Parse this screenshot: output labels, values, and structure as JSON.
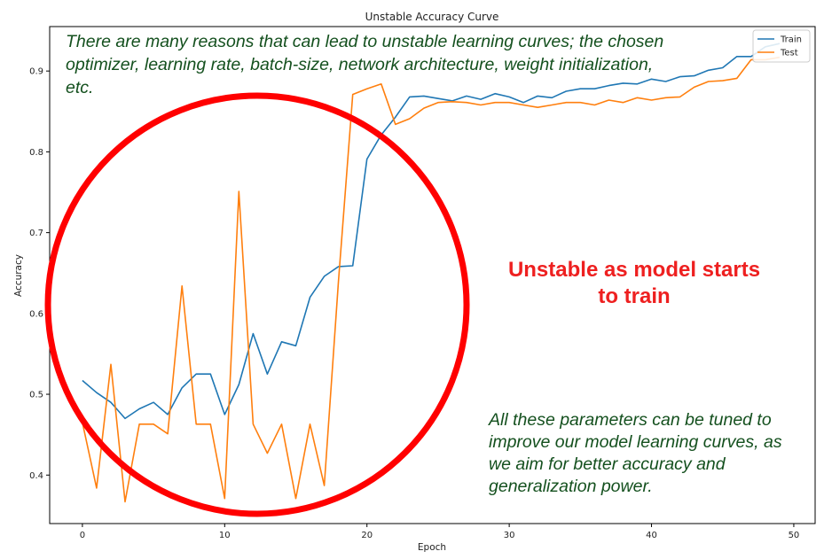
{
  "chart_data": {
    "type": "line",
    "title": "Unstable Accuracy Curve",
    "xlabel": "Epoch",
    "ylabel": "Accuracy",
    "xlim": [
      -2.3,
      51.5
    ],
    "ylim": [
      0.34,
      0.955
    ],
    "xticks": [
      0,
      10,
      20,
      30,
      40,
      50
    ],
    "yticks": [
      0.4,
      0.5,
      0.6,
      0.7,
      0.8,
      0.9
    ],
    "xtick_labels": [
      "0",
      "10",
      "20",
      "30",
      "40",
      "50"
    ],
    "ytick_labels": [
      "0.4",
      "0.5",
      "0.6",
      "0.7",
      "0.8",
      "0.9"
    ],
    "legend_position": "top-right",
    "grid": false,
    "x": [
      0,
      1,
      2,
      3,
      4,
      5,
      6,
      7,
      8,
      9,
      10,
      11,
      12,
      13,
      14,
      15,
      16,
      17,
      18,
      19,
      20,
      21,
      22,
      23,
      24,
      25,
      26,
      27,
      28,
      29,
      30,
      31,
      32,
      33,
      34,
      35,
      36,
      37,
      38,
      39,
      40,
      41,
      42,
      43,
      44,
      45,
      46,
      47,
      48,
      49
    ],
    "series": [
      {
        "name": "Train",
        "color": "#1f77b4",
        "values": [
          0.517,
          0.502,
          0.49,
          0.47,
          0.482,
          0.49,
          0.475,
          0.508,
          0.525,
          0.525,
          0.475,
          0.512,
          0.575,
          0.525,
          0.565,
          0.56,
          0.62,
          0.646,
          0.658,
          0.659,
          0.791,
          0.821,
          0.843,
          0.868,
          0.869,
          0.866,
          0.863,
          0.869,
          0.865,
          0.872,
          0.868,
          0.861,
          0.869,
          0.867,
          0.875,
          0.878,
          0.878,
          0.882,
          0.885,
          0.884,
          0.89,
          0.887,
          0.893,
          0.894,
          0.901,
          0.904,
          0.918,
          0.918,
          0.93,
          0.934
        ]
      },
      {
        "name": "Test",
        "color": "#ff7f0e",
        "values": [
          0.465,
          0.384,
          0.537,
          0.367,
          0.463,
          0.463,
          0.451,
          0.634,
          0.463,
          0.463,
          0.371,
          0.751,
          0.463,
          0.427,
          0.463,
          0.371,
          0.463,
          0.387,
          0.64,
          0.871,
          0.878,
          0.884,
          0.834,
          0.841,
          0.854,
          0.861,
          0.862,
          0.861,
          0.858,
          0.861,
          0.861,
          0.858,
          0.855,
          0.858,
          0.861,
          0.861,
          0.858,
          0.864,
          0.861,
          0.867,
          0.864,
          0.867,
          0.868,
          0.88,
          0.887,
          0.888,
          0.891,
          0.914,
          0.914,
          0.917
        ]
      }
    ]
  },
  "annotations": {
    "top_text": "There are many reasons that can lead to unstable learning curves; the chosen optimizer, learning rate, batch-size, network architecture, weight initialization, etc.",
    "red_text_line1": "Unstable as model starts",
    "red_text_line2": "to train",
    "bottom_text": "All these parameters can be tuned to improve our model learning curves, as we aim for better accuracy and generalization power.",
    "top_text_color": "#14501e",
    "red_color": "#ee2020"
  }
}
